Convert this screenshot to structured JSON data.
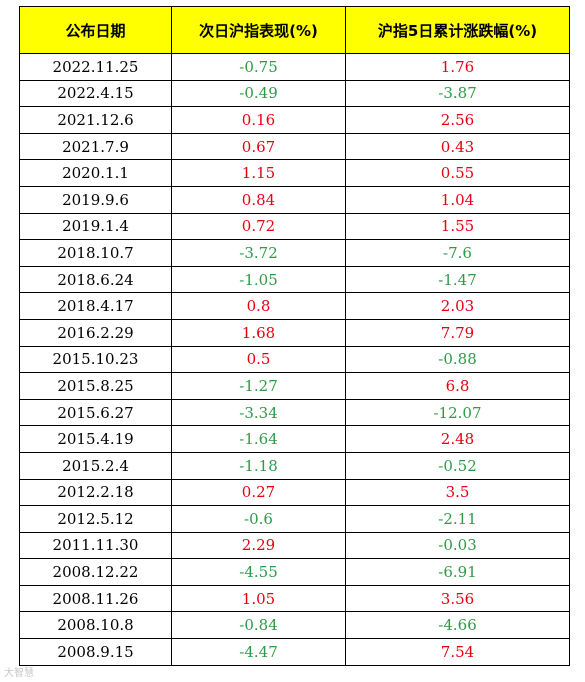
{
  "headers": [
    "公布日期",
    "次日沪指表现(%)",
    "沪指5日累计涨跌幅(%)"
  ],
  "colors": {
    "header_bg": "#ffff00",
    "positive": "#e60012",
    "negative": "#2e9a47"
  },
  "rows": [
    {
      "date": "2022.11.25",
      "next_day": "-0.75",
      "five_day": "1.76"
    },
    {
      "date": "2022.4.15",
      "next_day": "-0.49",
      "five_day": "-3.87"
    },
    {
      "date": "2021.12.6",
      "next_day": "0.16",
      "five_day": "2.56"
    },
    {
      "date": "2021.7.9",
      "next_day": "0.67",
      "five_day": "0.43"
    },
    {
      "date": "2020.1.1",
      "next_day": "1.15",
      "five_day": "0.55"
    },
    {
      "date": "2019.9.6",
      "next_day": "0.84",
      "five_day": "1.04"
    },
    {
      "date": "2019.1.4",
      "next_day": "0.72",
      "five_day": "1.55"
    },
    {
      "date": "2018.10.7",
      "next_day": "-3.72",
      "five_day": "-7.6"
    },
    {
      "date": "2018.6.24",
      "next_day": "-1.05",
      "five_day": "-1.47"
    },
    {
      "date": "2018.4.17",
      "next_day": "0.8",
      "five_day": "2.03"
    },
    {
      "date": "2016.2.29",
      "next_day": "1.68",
      "five_day": "7.79"
    },
    {
      "date": "2015.10.23",
      "next_day": "0.5",
      "five_day": "-0.88"
    },
    {
      "date": "2015.8.25",
      "next_day": "-1.27",
      "five_day": "6.8"
    },
    {
      "date": "2015.6.27",
      "next_day": "-3.34",
      "five_day": "-12.07"
    },
    {
      "date": "2015.4.19",
      "next_day": "-1.64",
      "five_day": "2.48"
    },
    {
      "date": "2015.2.4",
      "next_day": "-1.18",
      "five_day": "-0.52"
    },
    {
      "date": "2012.2.18",
      "next_day": "0.27",
      "five_day": "3.5"
    },
    {
      "date": "2012.5.12",
      "next_day": "-0.6",
      "five_day": "-2.11"
    },
    {
      "date": "2011.11.30",
      "next_day": "2.29",
      "five_day": "-0.03"
    },
    {
      "date": "2008.12.22",
      "next_day": "-4.55",
      "five_day": "-6.91"
    },
    {
      "date": "2008.11.26",
      "next_day": "1.05",
      "five_day": "3.56"
    },
    {
      "date": "2008.10.8",
      "next_day": "-0.84",
      "five_day": "-4.66"
    },
    {
      "date": "2008.9.15",
      "next_day": "-4.47",
      "five_day": "7.54"
    }
  ],
  "watermark": "大智慧"
}
